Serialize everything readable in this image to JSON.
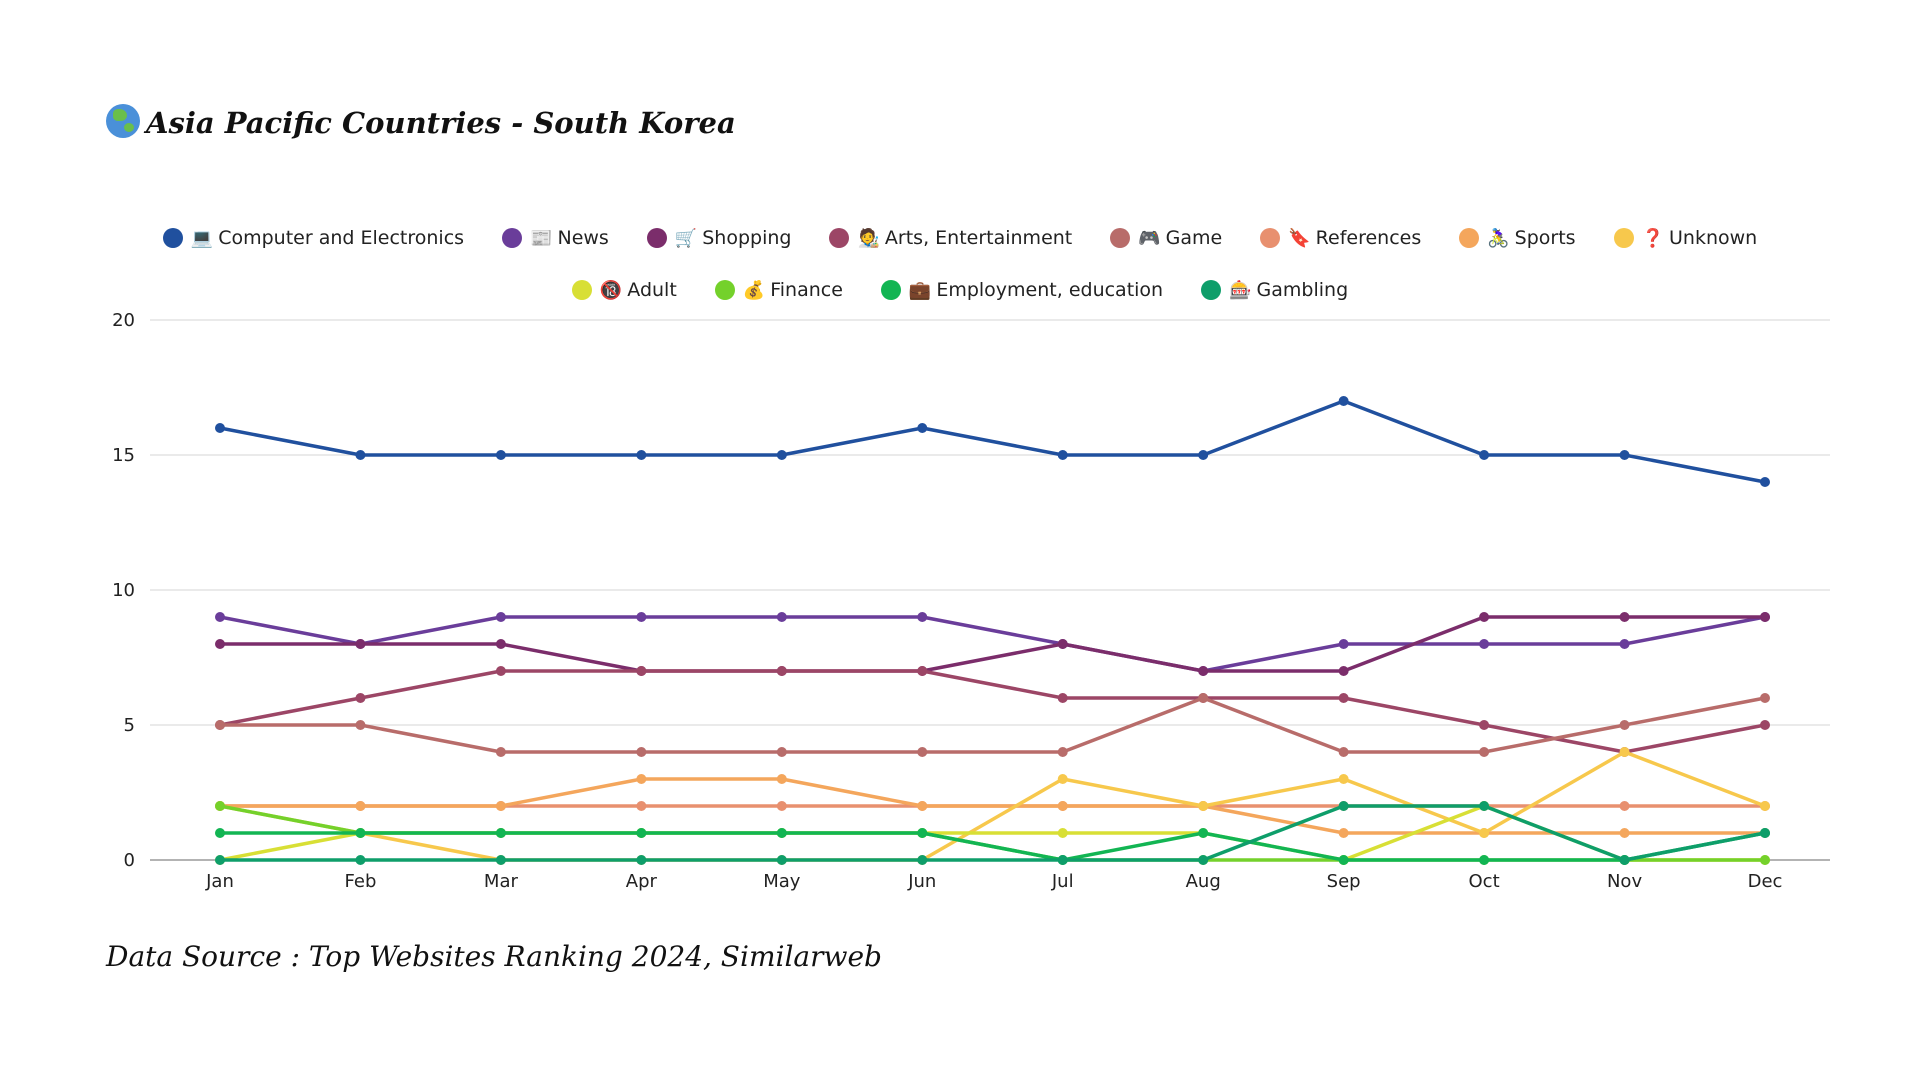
{
  "title": "Asia Pacific Countries - South Korea",
  "source": "Data Source : Top Websites Ranking 2024, Similarweb",
  "chart_data": {
    "type": "line",
    "title": "Asia Pacific Countries - South Korea",
    "xlabel": "",
    "ylabel": "",
    "ylim": [
      0,
      20
    ],
    "yticks": [
      "0",
      "5",
      "10",
      "15",
      "20"
    ],
    "grid": true,
    "legend": "top-center",
    "categories": [
      "Jan",
      "Feb",
      "Mar",
      "Apr",
      "May",
      "Jun",
      "Jul",
      "Aug",
      "Sep",
      "Oct",
      "Nov",
      "Dec"
    ],
    "series": [
      {
        "name": "Computer and Electronics",
        "icon": "💻",
        "color": "#20509e",
        "values": [
          16,
          15,
          15,
          15,
          15,
          16,
          15,
          15,
          17,
          15,
          15,
          14
        ]
      },
      {
        "name": "News",
        "icon": "📰",
        "color": "#6a3d9a",
        "values": [
          9,
          8,
          9,
          9,
          9,
          9,
          8,
          7,
          8,
          8,
          8,
          9
        ]
      },
      {
        "name": "Shopping",
        "icon": "🛒",
        "color": "#7b2d6b",
        "values": [
          8,
          8,
          8,
          7,
          7,
          7,
          8,
          7,
          7,
          9,
          9,
          9
        ]
      },
      {
        "name": "Arts, Entertainment",
        "icon": "🧑‍🎨",
        "color": "#9c4666",
        "values": [
          5,
          6,
          7,
          7,
          7,
          7,
          6,
          6,
          6,
          5,
          4,
          5
        ]
      },
      {
        "name": "Game",
        "icon": "🎮",
        "color": "#b86c6a",
        "values": [
          5,
          5,
          4,
          4,
          4,
          4,
          4,
          6,
          4,
          4,
          5,
          6
        ]
      },
      {
        "name": "References",
        "icon": "🔖",
        "color": "#e8906f",
        "values": [
          2,
          2,
          2,
          2,
          2,
          2,
          2,
          2,
          2,
          2,
          2,
          2
        ]
      },
      {
        "name": "Sports",
        "icon": "🚴‍♀️",
        "color": "#f4a65c",
        "values": [
          2,
          2,
          2,
          3,
          3,
          2,
          2,
          2,
          1,
          1,
          1,
          1
        ]
      },
      {
        "name": "Unknown",
        "icon": "❓",
        "color": "#f7c84c",
        "values": [
          2,
          1,
          0,
          0,
          0,
          0,
          3,
          2,
          3,
          1,
          4,
          2
        ]
      },
      {
        "name": "Adult",
        "icon": "🔞",
        "color": "#d8df35",
        "values": [
          0,
          1,
          1,
          1,
          1,
          1,
          1,
          1,
          0,
          2,
          0,
          0
        ]
      },
      {
        "name": "Finance",
        "icon": "💰",
        "color": "#74d12b",
        "values": [
          2,
          1,
          1,
          1,
          1,
          1,
          0,
          0,
          0,
          0,
          0,
          0
        ]
      },
      {
        "name": "Employment, education",
        "icon": "💼",
        "color": "#12b553",
        "values": [
          1,
          1,
          1,
          1,
          1,
          1,
          0,
          1,
          0,
          0,
          0,
          1
        ]
      },
      {
        "name": "Gambling",
        "icon": "🎰",
        "color": "#0e9e6a",
        "values": [
          0,
          0,
          0,
          0,
          0,
          0,
          0,
          0,
          2,
          2,
          0,
          1
        ]
      }
    ]
  }
}
